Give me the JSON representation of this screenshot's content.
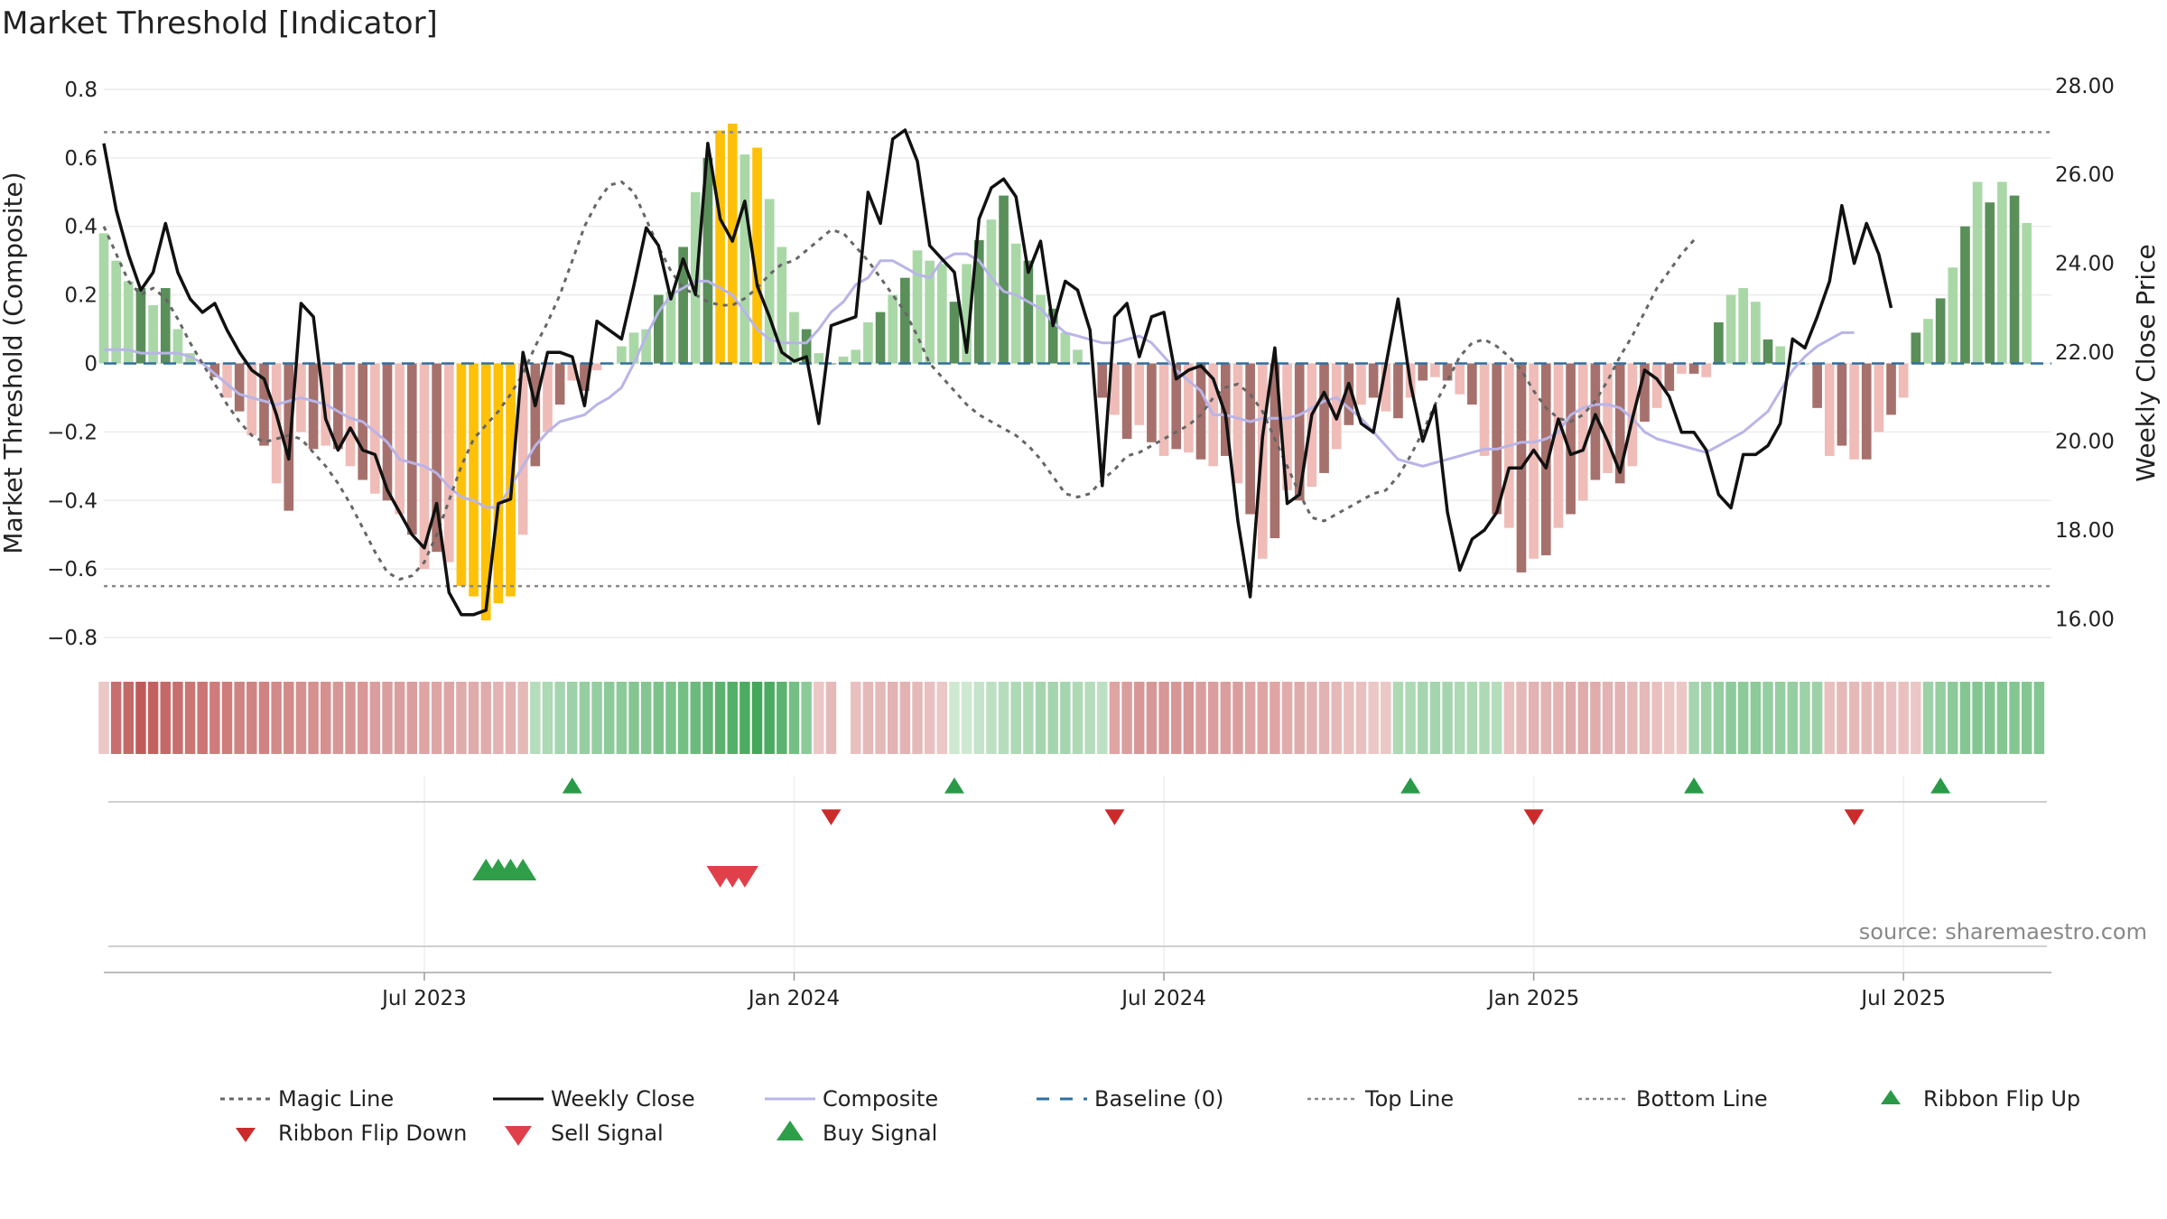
{
  "title": "Market Threshold [Indicator]",
  "source": "source: sharemaestro.com",
  "colors": {
    "weekly_close": "#111111",
    "magic_line": "#666666",
    "composite": "#b9b4e8",
    "baseline": "#2f6f9f",
    "threshold": "#888888",
    "bar_pos_dark": "#5a8f5a",
    "bar_pos_light": "#a9d8a6",
    "bar_neg_dark": "#a6716c",
    "bar_neg_light": "#efbcb8",
    "bar_extreme": "#ffc107",
    "ribbon_green": "#43a85a",
    "ribbon_red": "#c05a5a",
    "flip_up": "#2a9a48",
    "flip_down": "#cc2b2b",
    "sell": "#e0404a",
    "buy": "#2f9e48"
  },
  "chart_data": {
    "type": "line",
    "title": "Market Threshold [Indicator]",
    "ylabel_left": "Market Threshold (Composite)",
    "ylabel_right": "Weekly Close Price",
    "left_ylim": [
      -0.85,
      0.85
    ],
    "right_ylim": [
      15.2,
      28.3
    ],
    "left_ticks": [
      "0.8",
      "0.6",
      "0.4",
      "0.2",
      "0",
      "−0.2",
      "−0.4",
      "−0.6",
      "−0.8"
    ],
    "left_tick_values": [
      0.8,
      0.6,
      0.4,
      0.2,
      0,
      -0.2,
      -0.4,
      -0.6,
      -0.8
    ],
    "right_ticks": [
      "28.00",
      "26.00",
      "24.00",
      "22.00",
      "20.00",
      "18.00",
      "16.00"
    ],
    "right_tick_values": [
      28,
      26,
      24,
      22,
      20,
      18,
      16
    ],
    "x_ticks": [
      "Jul 2023",
      "Jan 2024",
      "Jul 2024",
      "Jan 2025",
      "Jul 2025"
    ],
    "x_tick_weeks": [
      26,
      56,
      86,
      116,
      146
    ],
    "top_line": 0.675,
    "bottom_line": -0.65,
    "baseline": 0,
    "grid": true,
    "legend_position": "bottom",
    "weeks": 159,
    "composite_bars": [
      0.38,
      0.3,
      0.24,
      0.22,
      0.17,
      0.22,
      0.1,
      0.03,
      0.0,
      -0.04,
      -0.1,
      -0.14,
      -0.21,
      -0.24,
      -0.35,
      -0.43,
      -0.2,
      -0.25,
      -0.24,
      -0.25,
      -0.3,
      -0.34,
      -0.38,
      -0.4,
      -0.44,
      -0.5,
      -0.6,
      -0.55,
      -0.58,
      -0.65,
      -0.68,
      -0.75,
      -0.7,
      -0.68,
      -0.5,
      -0.3,
      -0.2,
      -0.12,
      -0.05,
      -0.08,
      -0.02,
      0.0,
      0.05,
      0.09,
      0.1,
      0.2,
      0.21,
      0.34,
      0.5,
      0.6,
      0.68,
      0.7,
      0.61,
      0.63,
      0.48,
      0.34,
      0.15,
      0.1,
      0.03,
      0.0,
      0.02,
      0.04,
      0.12,
      0.15,
      0.2,
      0.25,
      0.33,
      0.3,
      0.29,
      0.18,
      0.29,
      0.36,
      0.42,
      0.49,
      0.35,
      0.3,
      0.2,
      0.16,
      0.09,
      0.04,
      0.0,
      -0.1,
      -0.15,
      -0.22,
      -0.18,
      -0.23,
      -0.27,
      -0.25,
      -0.26,
      -0.28,
      -0.3,
      -0.27,
      -0.35,
      -0.44,
      -0.57,
      -0.51,
      -0.37,
      -0.4,
      -0.36,
      -0.32,
      -0.25,
      -0.18,
      -0.12,
      -0.1,
      -0.14,
      -0.16,
      -0.1,
      -0.05,
      -0.04,
      -0.05,
      -0.09,
      -0.12,
      -0.27,
      -0.44,
      -0.48,
      -0.61,
      -0.57,
      -0.56,
      -0.48,
      -0.44,
      -0.4,
      -0.34,
      -0.32,
      -0.35,
      -0.3,
      -0.17,
      -0.13,
      -0.08,
      -0.03,
      -0.03,
      -0.04,
      0.12,
      0.2,
      0.22,
      0.18,
      0.07,
      0.05,
      0.0,
      0.0,
      -0.13,
      -0.27,
      -0.24,
      -0.28,
      -0.28,
      -0.2,
      -0.15,
      -0.1,
      0.09,
      0.13,
      0.19,
      0.28,
      0.4,
      0.53,
      0.47,
      0.53,
      0.49,
      0.41
    ],
    "composite_line": [
      0.04,
      0.04,
      0.04,
      0.03,
      0.03,
      0.03,
      0.03,
      0.02,
      0.0,
      -0.03,
      -0.06,
      -0.09,
      -0.1,
      -0.11,
      -0.12,
      -0.11,
      -0.1,
      -0.11,
      -0.12,
      -0.14,
      -0.16,
      -0.17,
      -0.2,
      -0.23,
      -0.28,
      -0.29,
      -0.3,
      -0.32,
      -0.36,
      -0.39,
      -0.4,
      -0.42,
      -0.42,
      -0.36,
      -0.3,
      -0.24,
      -0.2,
      -0.17,
      -0.16,
      -0.15,
      -0.12,
      -0.1,
      -0.07,
      0.0,
      0.08,
      0.15,
      0.2,
      0.22,
      0.24,
      0.24,
      0.22,
      0.2,
      0.15,
      0.1,
      0.07,
      0.06,
      0.06,
      0.06,
      0.1,
      0.15,
      0.18,
      0.23,
      0.25,
      0.3,
      0.3,
      0.28,
      0.26,
      0.25,
      0.3,
      0.32,
      0.32,
      0.3,
      0.25,
      0.21,
      0.2,
      0.18,
      0.16,
      0.12,
      0.09,
      0.08,
      0.07,
      0.06,
      0.06,
      0.07,
      0.08,
      0.06,
      0.02,
      -0.02,
      -0.05,
      -0.08,
      -0.15,
      -0.15,
      -0.16,
      -0.17,
      -0.16,
      -0.16,
      -0.16,
      -0.15,
      -0.13,
      -0.11,
      -0.1,
      -0.13,
      -0.16,
      -0.2,
      -0.24,
      -0.28,
      -0.29,
      -0.3,
      -0.29,
      -0.28,
      -0.27,
      -0.26,
      -0.25,
      -0.25,
      -0.24,
      -0.23,
      -0.23,
      -0.22,
      -0.2,
      -0.15,
      -0.13,
      -0.12,
      -0.12,
      -0.13,
      -0.16,
      -0.2,
      -0.22,
      -0.23,
      -0.24,
      -0.25,
      -0.26,
      -0.24,
      -0.22,
      -0.2,
      -0.17,
      -0.14,
      -0.08,
      -0.02,
      0.02,
      0.05,
      0.07,
      0.09,
      0.09
    ],
    "magic_line": [
      0.4,
      0.32,
      0.24,
      0.2,
      0.22,
      0.19,
      0.13,
      0.06,
      0.0,
      -0.06,
      -0.12,
      -0.17,
      -0.21,
      -0.23,
      -0.22,
      -0.21,
      -0.22,
      -0.26,
      -0.3,
      -0.35,
      -0.41,
      -0.48,
      -0.55,
      -0.61,
      -0.63,
      -0.62,
      -0.58,
      -0.5,
      -0.4,
      -0.3,
      -0.22,
      -0.18,
      -0.14,
      -0.09,
      -0.03,
      0.05,
      0.12,
      0.2,
      0.3,
      0.4,
      0.47,
      0.52,
      0.53,
      0.5,
      0.42,
      0.34,
      0.27,
      0.22,
      0.2,
      0.18,
      0.17,
      0.17,
      0.19,
      0.22,
      0.26,
      0.29,
      0.3,
      0.33,
      0.36,
      0.39,
      0.38,
      0.34,
      0.3,
      0.25,
      0.2,
      0.15,
      0.08,
      0.0,
      -0.04,
      -0.08,
      -0.12,
      -0.15,
      -0.17,
      -0.19,
      -0.21,
      -0.24,
      -0.28,
      -0.33,
      -0.38,
      -0.39,
      -0.38,
      -0.34,
      -0.31,
      -0.27,
      -0.26,
      -0.24,
      -0.22,
      -0.2,
      -0.18,
      -0.15,
      -0.1,
      -0.07,
      -0.06,
      -0.09,
      -0.14,
      -0.22,
      -0.3,
      -0.38,
      -0.45,
      -0.46,
      -0.44,
      -0.42,
      -0.4,
      -0.38,
      -0.37,
      -0.33,
      -0.27,
      -0.2,
      -0.12,
      -0.05,
      0.02,
      0.06,
      0.07,
      0.05,
      0.02,
      -0.02,
      -0.08,
      -0.13,
      -0.16,
      -0.17,
      -0.15,
      -0.11,
      -0.05,
      0.02,
      0.08,
      0.15,
      0.22,
      0.27,
      0.32,
      0.36
    ],
    "weekly_close": [
      26.7,
      25.2,
      24.2,
      23.4,
      23.8,
      24.9,
      23.8,
      23.2,
      22.9,
      23.1,
      22.5,
      22.0,
      21.6,
      21.4,
      20.6,
      19.6,
      23.1,
      22.8,
      20.5,
      19.8,
      20.3,
      19.8,
      19.7,
      18.9,
      18.4,
      17.9,
      17.6,
      18.6,
      16.6,
      16.1,
      16.1,
      16.2,
      18.6,
      18.7,
      22.0,
      20.8,
      22.0,
      22.0,
      21.9,
      20.8,
      22.7,
      22.5,
      22.3,
      23.5,
      24.8,
      24.4,
      23.2,
      24.1,
      23.3,
      26.7,
      25.0,
      24.5,
      25.4,
      23.5,
      22.8,
      22.0,
      21.8,
      21.9,
      20.4,
      22.6,
      22.7,
      22.8,
      25.6,
      24.9,
      26.8,
      27.0,
      26.3,
      24.4,
      24.1,
      23.8,
      22.0,
      25.0,
      25.7,
      25.9,
      25.5,
      23.8,
      24.5,
      22.6,
      23.6,
      23.4,
      22.5,
      19.0,
      22.8,
      23.1,
      21.9,
      22.8,
      22.9,
      21.4,
      21.6,
      21.7,
      21.4,
      20.6,
      18.2,
      16.5,
      20.1,
      22.1,
      18.6,
      18.8,
      20.6,
      21.1,
      20.5,
      21.3,
      20.4,
      20.2,
      21.7,
      23.2,
      21.3,
      20.0,
      20.8,
      18.4,
      17.1,
      17.8,
      18.0,
      18.4,
      19.4,
      19.4,
      19.8,
      19.4,
      20.5,
      19.7,
      19.8,
      20.6,
      20.0,
      19.3,
      20.5,
      21.6,
      21.4,
      21.0,
      20.2,
      20.2,
      19.8,
      18.8,
      18.5,
      19.7,
      19.7,
      19.9,
      20.4,
      22.3,
      22.1,
      22.8,
      23.6,
      25.3,
      24.0,
      24.9,
      24.2,
      23.0
    ]
  },
  "ribbon": {
    "values": [
      -0.2,
      -0.85,
      -0.9,
      -1.0,
      -0.95,
      -0.9,
      -0.85,
      -0.8,
      -0.8,
      -0.75,
      -0.75,
      -0.7,
      -0.7,
      -0.7,
      -0.65,
      -0.65,
      -0.6,
      -0.6,
      -0.6,
      -0.55,
      -0.55,
      -0.55,
      -0.5,
      -0.5,
      -0.5,
      -0.5,
      -0.45,
      -0.45,
      -0.45,
      -0.4,
      -0.4,
      -0.4,
      -0.35,
      -0.35,
      -0.3,
      0.3,
      0.35,
      0.4,
      0.45,
      0.5,
      0.5,
      0.55,
      0.55,
      0.6,
      0.6,
      0.65,
      0.65,
      0.7,
      0.75,
      0.8,
      0.85,
      0.9,
      0.95,
      1.0,
      0.95,
      0.85,
      0.7,
      0.55,
      -0.2,
      -0.3,
      0,
      -0.25,
      -0.3,
      -0.3,
      -0.35,
      -0.35,
      -0.3,
      -0.25,
      -0.2,
      0.15,
      0.15,
      0.2,
      0.25,
      0.3,
      0.35,
      0.35,
      0.4,
      0.4,
      0.4,
      0.35,
      0.3,
      0.25,
      -0.45,
      -0.5,
      -0.55,
      -0.55,
      -0.55,
      -0.55,
      -0.55,
      -0.5,
      -0.5,
      -0.5,
      -0.5,
      -0.45,
      -0.45,
      -0.45,
      -0.4,
      -0.4,
      -0.35,
      -0.35,
      -0.3,
      -0.25,
      -0.25,
      -0.2,
      -0.2,
      0.35,
      0.35,
      0.4,
      0.4,
      0.4,
      0.35,
      0.35,
      0.35,
      0.3,
      -0.25,
      -0.3,
      -0.35,
      -0.35,
      -0.35,
      -0.4,
      -0.4,
      -0.4,
      -0.35,
      -0.35,
      -0.3,
      -0.3,
      -0.25,
      -0.2,
      -0.2,
      0.4,
      0.45,
      0.5,
      0.55,
      0.55,
      0.55,
      0.5,
      0.5,
      0.5,
      0.45,
      0.45,
      -0.25,
      -0.3,
      -0.3,
      -0.3,
      -0.3,
      -0.25,
      -0.25,
      -0.2,
      0.45,
      0.5,
      0.55,
      0.6,
      0.6,
      0.6,
      0.6,
      0.6,
      0.6,
      0.6
    ]
  },
  "signals": {
    "ribbon_flip_up_weeks": [
      38,
      69,
      106,
      129,
      149
    ],
    "ribbon_flip_down_weeks": [
      59,
      82,
      116,
      142
    ],
    "buy_signal_weeks": [
      31,
      32,
      33,
      34
    ],
    "sell_signal_weeks": [
      50,
      51,
      52
    ]
  },
  "legend": [
    {
      "label": "Magic Line",
      "kind": "dotted",
      "color": "#666666"
    },
    {
      "label": "Weekly Close",
      "kind": "solid",
      "color": "#111111"
    },
    {
      "label": "Composite",
      "kind": "solid",
      "color": "#b9b4e8"
    },
    {
      "label": "Baseline (0)",
      "kind": "dashed",
      "color": "#2f6f9f"
    },
    {
      "label": "Top Line",
      "kind": "dotted-light",
      "color": "#888888"
    },
    {
      "label": "Bottom Line",
      "kind": "dotted-light",
      "color": "#888888"
    },
    {
      "label": "Ribbon Flip Up",
      "kind": "tri-up",
      "color": "#2a9a48"
    },
    {
      "label": "Ribbon Flip Down",
      "kind": "tri-down",
      "color": "#cc2b2b"
    },
    {
      "label": "Sell Signal",
      "kind": "tri-down-lg",
      "color": "#e0404a"
    },
    {
      "label": "Buy Signal",
      "kind": "tri-up-lg",
      "color": "#2f9e48"
    }
  ]
}
